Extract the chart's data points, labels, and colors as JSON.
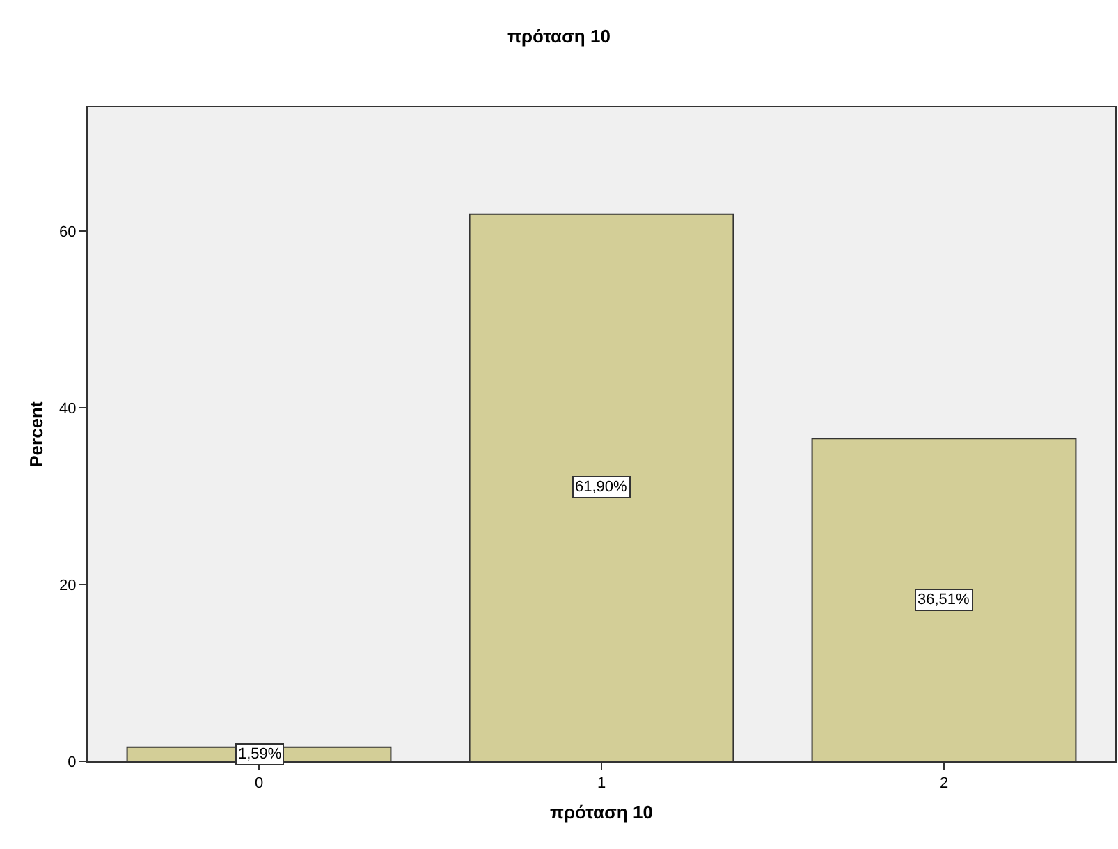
{
  "chart_data": {
    "type": "bar",
    "title": "πρόταση 10",
    "xlabel": "πρόταση 10",
    "ylabel": "Percent",
    "categories": [
      "0",
      "1",
      "2"
    ],
    "values": [
      1.59,
      61.9,
      36.51
    ],
    "value_labels": [
      "1,59%",
      "61,90%",
      "36,51%"
    ],
    "color": "#d3ce97",
    "ylim": [
      0,
      74
    ],
    "yticks": [
      0,
      20,
      40,
      60
    ],
    "grid": false,
    "legend": false
  }
}
